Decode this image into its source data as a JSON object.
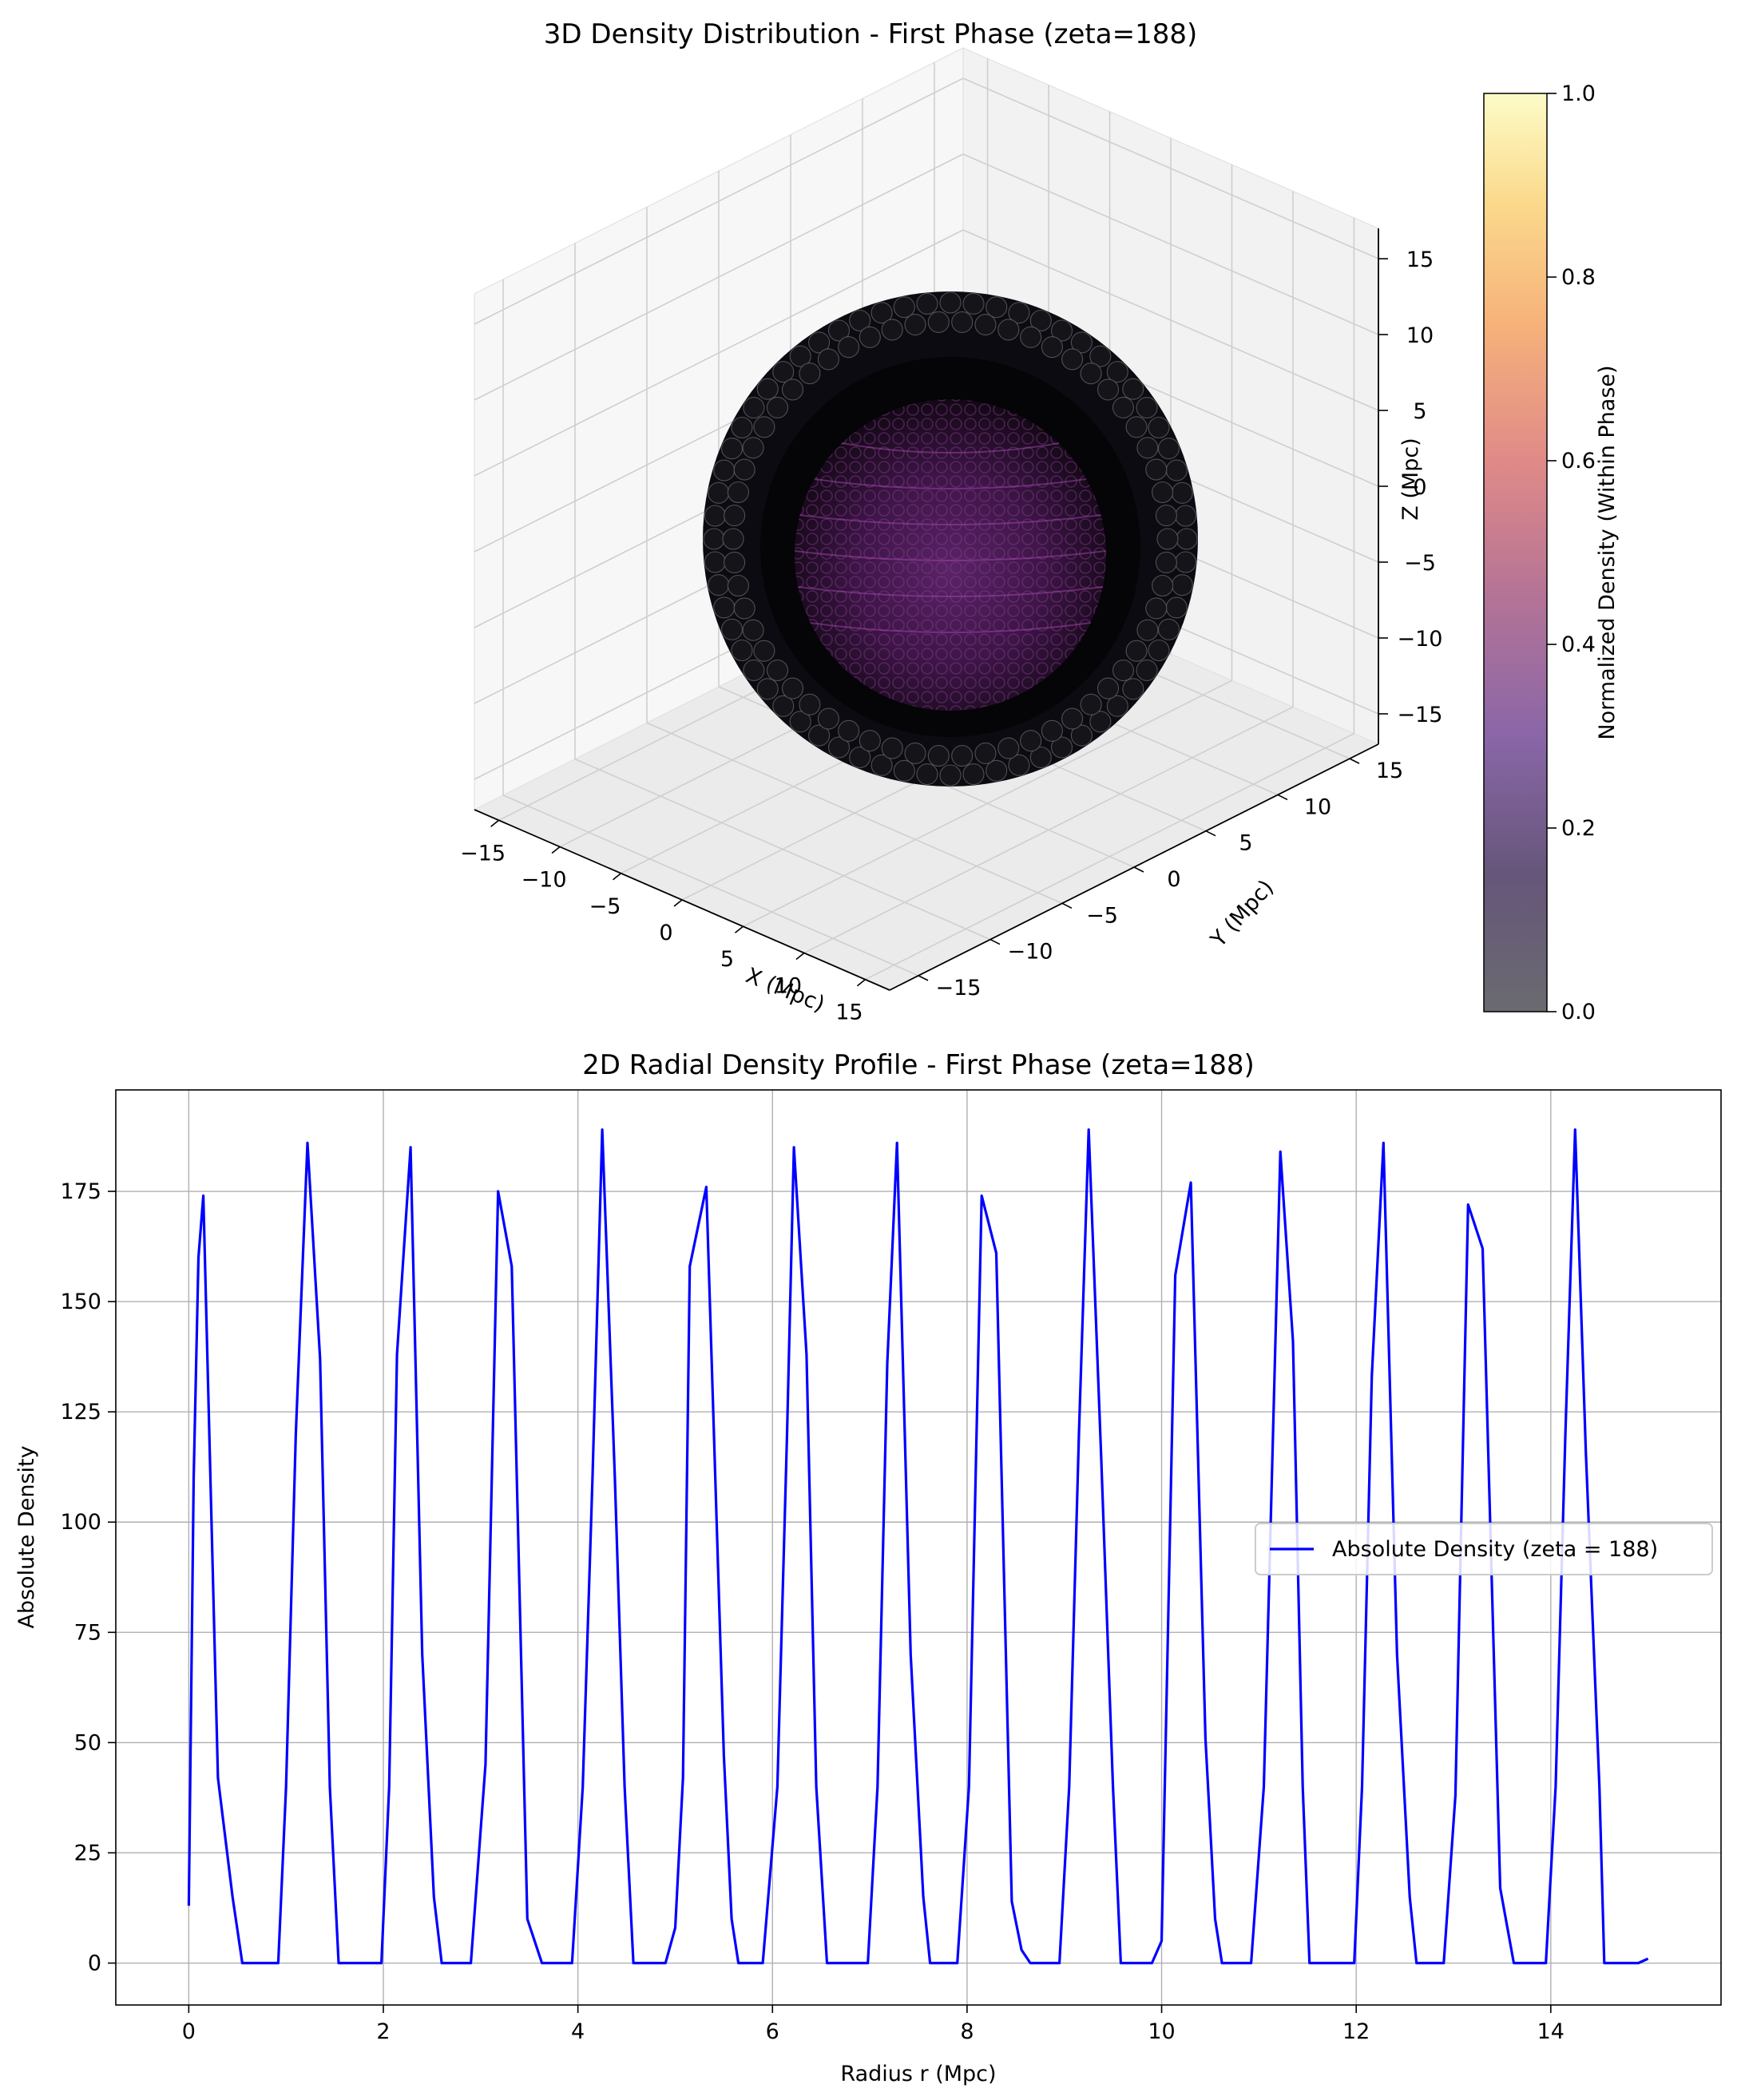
{
  "chart_data": [
    {
      "type": "scatter3d",
      "title": "3D Density Distribution - First Phase (zeta=188)",
      "xlabel": "X (Mpc)",
      "ylabel": "Y (Mpc)",
      "zlabel": "Z (Mpc)",
      "xticks": [
        "−15",
        "−10",
        "−5",
        "0",
        "5",
        "10",
        "15"
      ],
      "yticks": [
        "−15",
        "−10",
        "−5",
        "0",
        "5",
        "10",
        "15"
      ],
      "zticks": [
        "−15",
        "−10",
        "−5",
        "0",
        "5",
        "10",
        "15"
      ],
      "xlim": [
        -17,
        17
      ],
      "ylim": [
        -17,
        17
      ],
      "zlim": [
        -17,
        17
      ],
      "grid": true,
      "colorbar": {
        "label": "Normalized Density (Within Phase)",
        "ticks": [
          "0.0",
          "0.2",
          "0.4",
          "0.6",
          "0.8",
          "1.0"
        ],
        "range": [
          0,
          1
        ],
        "colormap": "magma"
      },
      "colors": {
        "shell": "#0b0a10",
        "core": "#6d2a78",
        "edge_highlight": "#d8d8e0"
      }
    },
    {
      "type": "line",
      "title": "2D Radial Density Profile - First Phase (zeta=188)",
      "xlabel": "Radius r (Mpc)",
      "ylabel": "Absolute Density",
      "xlim": [
        -0.75,
        15.75
      ],
      "ylim": [
        -9.5,
        198
      ],
      "xticks": [
        "0",
        "2",
        "4",
        "6",
        "8",
        "10",
        "12",
        "14"
      ],
      "yticks": [
        "0",
        "25",
        "50",
        "75",
        "100",
        "125",
        "150",
        "175"
      ],
      "grid": true,
      "legend": "center-right",
      "series": [
        {
          "name": "Absolute Density (zeta = 188)",
          "color": "#0000ff",
          "x": [
            0,
            0.05,
            0.1,
            0.15,
            0.3,
            0.45,
            0.55,
            0.62,
            0.7,
            0.92,
            1.0,
            1.1,
            1.22,
            1.35,
            1.45,
            1.54,
            1.64,
            1.98,
            2.06,
            2.14,
            2.28,
            2.4,
            2.52,
            2.6,
            2.7,
            2.9,
            3.05,
            3.18,
            3.32,
            3.48,
            3.63,
            3.7,
            3.94,
            4.05,
            4.15,
            4.25,
            4.38,
            4.48,
            4.57,
            4.65,
            4.9,
            5.0,
            5.08,
            5.15,
            5.32,
            5.5,
            5.58,
            5.65,
            5.9,
            6.05,
            6.15,
            6.22,
            6.35,
            6.45,
            6.56,
            6.65,
            6.98,
            7.08,
            7.18,
            7.28,
            7.42,
            7.55,
            7.62,
            7.7,
            7.9,
            8.02,
            8.15,
            8.3,
            8.46,
            8.56,
            8.65,
            8.95,
            9.05,
            9.15,
            9.25,
            9.38,
            9.5,
            9.58,
            9.65,
            9.9,
            10.0,
            10.14,
            10.3,
            10.45,
            10.55,
            10.62,
            10.7,
            10.92,
            11.05,
            11.22,
            11.35,
            11.45,
            11.52,
            11.65,
            11.98,
            12.06,
            12.16,
            12.28,
            12.42,
            12.55,
            12.62,
            12.7,
            12.9,
            13.02,
            13.15,
            13.3,
            13.48,
            13.62,
            13.7,
            13.95,
            14.05,
            14.15,
            14.25,
            14.36,
            14.5,
            14.55,
            14.62,
            14.9,
            15.0
          ],
          "values": [
            13,
            110,
            160,
            174,
            42,
            15,
            0,
            0,
            0,
            0,
            40,
            120,
            186,
            137,
            40,
            0,
            0,
            0,
            40,
            138,
            185,
            70,
            15,
            0,
            0,
            0,
            45,
            175,
            158,
            10,
            0,
            0,
            0,
            40,
            110,
            189,
            110,
            40,
            0,
            0,
            0,
            8,
            42,
            158,
            176,
            47,
            10,
            0,
            0,
            40,
            120,
            185,
            138,
            40,
            0,
            0,
            0,
            40,
            136,
            186,
            70,
            15,
            0,
            0,
            0,
            40,
            174,
            161,
            14,
            3,
            0,
            0,
            40,
            120,
            189,
            114,
            40,
            0,
            0,
            0,
            5,
            156,
            177,
            51,
            10,
            0,
            0,
            0,
            40,
            184,
            141,
            40,
            0,
            0,
            0,
            40,
            133,
            186,
            70,
            15,
            0,
            0,
            0,
            38,
            172,
            162,
            17,
            0,
            0,
            0,
            40,
            120,
            189,
            116,
            40,
            0,
            0,
            0,
            1
          ]
        }
      ]
    }
  ]
}
